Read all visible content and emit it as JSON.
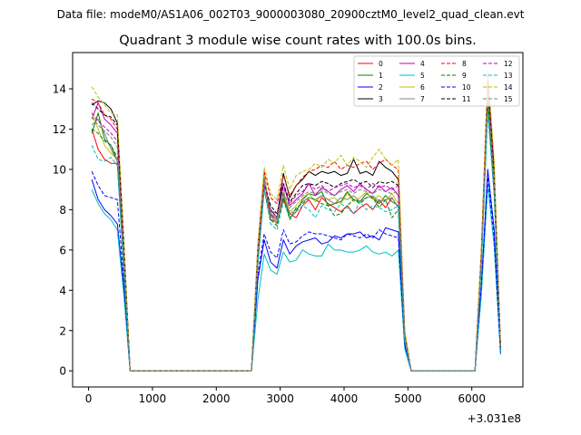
{
  "figure": {
    "suptitle": "Data file: modeM0/AS1A06_002T03_9000003080_20900cztM0_level2_quad_clean.evt"
  },
  "chart_data": {
    "type": "line",
    "title": "Quadrant 3 module wise count rates with 100.0s bins.",
    "xlabel": "",
    "ylabel": "",
    "x_offset_label": "+3.031e8",
    "xlim": [
      -250,
      6800
    ],
    "ylim": [
      -0.8,
      15.8
    ],
    "x_ticks": [
      0,
      1000,
      2000,
      3000,
      4000,
      5000,
      6000
    ],
    "x_tick_labels": [
      "0",
      "1000",
      "2000",
      "3000",
      "4000",
      "5000",
      "6000"
    ],
    "y_ticks": [
      0,
      2,
      4,
      6,
      8,
      10,
      12,
      14
    ],
    "y_tick_labels": [
      "0",
      "2",
      "4",
      "6",
      "8",
      "10",
      "12",
      "14"
    ],
    "legend_position": "top-right",
    "legend_columns": 4,
    "x": [
      50,
      150,
      250,
      350,
      450,
      550,
      650,
      750,
      850,
      950,
      1050,
      1150,
      1250,
      1350,
      1450,
      1550,
      1650,
      1750,
      1850,
      1950,
      2050,
      2150,
      2250,
      2350,
      2450,
      2550,
      2650,
      2750,
      2850,
      2950,
      3050,
      3150,
      3250,
      3350,
      3450,
      3550,
      3650,
      3750,
      3850,
      3950,
      4050,
      4150,
      4250,
      4350,
      4450,
      4550,
      4650,
      4750,
      4850,
      4950,
      5050,
      5150,
      5250,
      5350,
      5450,
      5550,
      5650,
      5750,
      5850,
      5950,
      6050,
      6150,
      6250,
      6350,
      6450
    ],
    "series": [
      {
        "name": "0",
        "color": "#ff0000",
        "dash": "solid",
        "values": [
          12.0,
          11.0,
          10.5,
          10.3,
          10.3,
          5.5,
          0,
          0,
          0,
          0,
          0,
          0,
          0,
          0,
          0,
          0,
          0,
          0,
          0,
          0,
          0,
          0,
          0,
          0,
          0,
          0,
          5.5,
          9.5,
          7.5,
          7.4,
          8.5,
          7.8,
          7.6,
          8.2,
          8.5,
          8.0,
          8.6,
          8.3,
          8.1,
          7.9,
          8.2,
          7.8,
          8.1,
          8.3,
          8.0,
          8.5,
          8.1,
          8.6,
          8.1,
          1.5,
          0,
          0,
          0,
          0,
          0,
          0,
          0,
          0,
          0,
          0,
          0,
          5.5,
          13.8,
          9.2,
          1.2
        ]
      },
      {
        "name": "1",
        "color": "#008000",
        "dash": "solid",
        "values": [
          11.8,
          12.8,
          11.5,
          11.2,
          10.4,
          5.0,
          0,
          0,
          0,
          0,
          0,
          0,
          0,
          0,
          0,
          0,
          0,
          0,
          0,
          0,
          0,
          0,
          0,
          0,
          0,
          0,
          5.8,
          9.5,
          7.8,
          7.3,
          8.8,
          7.6,
          7.9,
          8.5,
          8.8,
          8.7,
          8.9,
          8.2,
          8.3,
          8.4,
          8.9,
          8.5,
          8.4,
          8.8,
          8.6,
          8.3,
          8.7,
          8.4,
          8.2,
          1.7,
          0,
          0,
          0,
          0,
          0,
          0,
          0,
          0,
          0,
          0,
          0,
          5.4,
          13.2,
          8.8,
          1.2
        ]
      },
      {
        "name": "2",
        "color": "#0000ff",
        "dash": "solid",
        "values": [
          9.5,
          8.5,
          8.0,
          7.7,
          7.3,
          4.2,
          0,
          0,
          0,
          0,
          0,
          0,
          0,
          0,
          0,
          0,
          0,
          0,
          0,
          0,
          0,
          0,
          0,
          0,
          0,
          0,
          4.5,
          6.5,
          5.4,
          5.1,
          6.5,
          5.8,
          6.2,
          6.4,
          6.5,
          6.6,
          6.3,
          6.4,
          6.7,
          6.6,
          6.8,
          6.8,
          6.9,
          6.6,
          6.7,
          6.5,
          7.1,
          7.0,
          6.9,
          1.3,
          0,
          0,
          0,
          0,
          0,
          0,
          0,
          0,
          0,
          0,
          0,
          4.2,
          10.0,
          7.0,
          0.9
        ]
      },
      {
        "name": "3",
        "color": "#000000",
        "dash": "solid",
        "values": [
          13.2,
          13.4,
          13.3,
          13.0,
          12.3,
          6.5,
          0,
          0,
          0,
          0,
          0,
          0,
          0,
          0,
          0,
          0,
          0,
          0,
          0,
          0,
          0,
          0,
          0,
          0,
          0,
          0,
          6.0,
          9.5,
          8.0,
          7.6,
          9.8,
          8.6,
          9.2,
          9.5,
          9.9,
          9.7,
          9.9,
          9.8,
          9.9,
          9.7,
          9.8,
          10.5,
          9.8,
          9.9,
          9.7,
          10.4,
          10.1,
          9.9,
          9.5,
          1.9,
          0,
          0,
          0,
          0,
          0,
          0,
          0,
          0,
          0,
          0,
          0,
          6.0,
          14.6,
          10.0,
          1.2
        ]
      },
      {
        "name": "4",
        "color": "#bf00bf",
        "dash": "solid",
        "values": [
          12.5,
          13.3,
          12.5,
          12.2,
          11.8,
          5.8,
          0,
          0,
          0,
          0,
          0,
          0,
          0,
          0,
          0,
          0,
          0,
          0,
          0,
          0,
          0,
          0,
          0,
          0,
          0,
          0,
          5.6,
          9.6,
          7.8,
          7.5,
          9.3,
          8.2,
          8.5,
          8.8,
          9.3,
          8.7,
          9.1,
          8.9,
          8.7,
          9.0,
          9.2,
          8.9,
          9.3,
          9.0,
          8.8,
          9.2,
          8.9,
          9.1,
          8.7,
          1.8,
          0,
          0,
          0,
          0,
          0,
          0,
          0,
          0,
          0,
          0,
          0,
          5.5,
          13.9,
          9.5,
          1.2
        ]
      },
      {
        "name": "5",
        "color": "#00bfbf",
        "dash": "solid",
        "values": [
          9.0,
          8.3,
          7.8,
          7.5,
          7.0,
          3.8,
          0,
          0,
          0,
          0,
          0,
          0,
          0,
          0,
          0,
          0,
          0,
          0,
          0,
          0,
          0,
          0,
          0,
          0,
          0,
          0,
          3.5,
          5.8,
          5.0,
          4.8,
          5.9,
          5.4,
          5.5,
          6.0,
          5.8,
          5.7,
          5.7,
          6.3,
          6.0,
          6.0,
          5.9,
          5.9,
          6.0,
          6.2,
          5.9,
          5.8,
          5.9,
          5.7,
          6.0,
          1.1,
          0,
          0,
          0,
          0,
          0,
          0,
          0,
          0,
          0,
          0,
          0,
          3.8,
          9.2,
          6.2,
          0.8
        ]
      },
      {
        "name": "6",
        "color": "#bfbf00",
        "dash": "solid",
        "values": [
          12.8,
          12.0,
          11.2,
          10.8,
          10.5,
          5.3,
          0,
          0,
          0,
          0,
          0,
          0,
          0,
          0,
          0,
          0,
          0,
          0,
          0,
          0,
          0,
          0,
          0,
          0,
          0,
          0,
          5.7,
          9.8,
          7.7,
          7.4,
          8.9,
          7.9,
          8.2,
          8.6,
          8.8,
          8.4,
          8.7,
          8.5,
          8.6,
          8.3,
          8.8,
          8.4,
          8.6,
          8.9,
          8.5,
          8.7,
          8.4,
          8.8,
          8.3,
          1.6,
          0,
          0,
          0,
          0,
          0,
          0,
          0,
          0,
          0,
          0,
          0,
          5.6,
          14.1,
          9.3,
          1.2
        ]
      },
      {
        "name": "7",
        "color": "#808080",
        "dash": "solid",
        "values": [
          12.2,
          12.5,
          11.8,
          11.0,
          10.4,
          5.2,
          0,
          0,
          0,
          0,
          0,
          0,
          0,
          0,
          0,
          0,
          0,
          0,
          0,
          0,
          0,
          0,
          0,
          0,
          0,
          0,
          5.6,
          9.6,
          7.7,
          7.3,
          8.7,
          7.8,
          8.0,
          8.4,
          8.6,
          8.5,
          8.7,
          8.5,
          8.3,
          8.6,
          8.5,
          8.7,
          8.4,
          8.6,
          8.7,
          8.4,
          8.5,
          8.6,
          8.1,
          1.6,
          0,
          0,
          0,
          0,
          0,
          0,
          0,
          0,
          0,
          0,
          0,
          5.3,
          13.6,
          9.1,
          1.1
        ]
      },
      {
        "name": "8",
        "color": "#ff0000",
        "dash": "dashed",
        "values": [
          13.5,
          13.3,
          12.7,
          12.5,
          12.0,
          6.2,
          0,
          0,
          0,
          0,
          0,
          0,
          0,
          0,
          0,
          0,
          0,
          0,
          0,
          0,
          0,
          0,
          0,
          0,
          0,
          0,
          6.2,
          9.9,
          8.6,
          8.3,
          9.7,
          8.7,
          9.2,
          9.6,
          9.9,
          10.0,
          10.2,
          10.1,
          10.4,
          10.0,
          10.2,
          10.1,
          10.3,
          10.4,
          10.0,
          10.3,
          10.5,
          10.2,
          10.0,
          1.9,
          0,
          0,
          0,
          0,
          0,
          0,
          0,
          0,
          0,
          0,
          0,
          6.0,
          14.7,
          10.2,
          1.3
        ]
      },
      {
        "name": "9",
        "color": "#008000",
        "dash": "dashed",
        "values": [
          12.0,
          11.8,
          11.4,
          11.2,
          10.6,
          5.4,
          0,
          0,
          0,
          0,
          0,
          0,
          0,
          0,
          0,
          0,
          0,
          0,
          0,
          0,
          0,
          0,
          0,
          0,
          0,
          0,
          5.4,
          9.0,
          7.5,
          7.2,
          8.6,
          7.5,
          8.1,
          8.3,
          8.6,
          8.5,
          8.3,
          8.2,
          7.7,
          7.8,
          8.2,
          8.5,
          8.3,
          8.6,
          8.6,
          8.1,
          8.5,
          7.6,
          8.0,
          1.6,
          0,
          0,
          0,
          0,
          0,
          0,
          0,
          0,
          0,
          0,
          0,
          5.4,
          13.5,
          9.0,
          1.2
        ]
      },
      {
        "name": "10",
        "color": "#0000ff",
        "dash": "dashed",
        "values": [
          9.9,
          9.2,
          8.7,
          8.6,
          8.5,
          4.5,
          0,
          0,
          0,
          0,
          0,
          0,
          0,
          0,
          0,
          0,
          0,
          0,
          0,
          0,
          0,
          0,
          0,
          0,
          0,
          0,
          4.8,
          6.8,
          5.9,
          5.6,
          7.0,
          6.3,
          6.4,
          6.7,
          6.9,
          6.8,
          6.8,
          6.7,
          6.6,
          6.5,
          6.8,
          6.7,
          6.6,
          6.8,
          6.6,
          7.0,
          6.8,
          6.7,
          6.6,
          1.3,
          0,
          0,
          0,
          0,
          0,
          0,
          0,
          0,
          0,
          0,
          0,
          4.3,
          9.6,
          6.6,
          0.9
        ]
      },
      {
        "name": "11",
        "color": "#000000",
        "dash": "dashed",
        "values": [
          13.3,
          13.0,
          12.7,
          12.6,
          12.2,
          6.2,
          0,
          0,
          0,
          0,
          0,
          0,
          0,
          0,
          0,
          0,
          0,
          0,
          0,
          0,
          0,
          0,
          0,
          0,
          0,
          0,
          5.8,
          9.3,
          8.2,
          7.8,
          9.3,
          8.4,
          8.8,
          9.2,
          9.3,
          9.2,
          9.4,
          9.3,
          9.1,
          9.3,
          9.4,
          9.5,
          9.3,
          9.4,
          9.1,
          9.4,
          9.3,
          9.4,
          9.2,
          1.8,
          0,
          0,
          0,
          0,
          0,
          0,
          0,
          0,
          0,
          0,
          0,
          5.7,
          14.3,
          9.7,
          1.2
        ]
      },
      {
        "name": "12",
        "color": "#bf00bf",
        "dash": "dashed",
        "values": [
          12.8,
          12.4,
          12.1,
          11.8,
          11.4,
          5.8,
          0,
          0,
          0,
          0,
          0,
          0,
          0,
          0,
          0,
          0,
          0,
          0,
          0,
          0,
          0,
          0,
          0,
          0,
          0,
          0,
          5.9,
          9.2,
          8.0,
          7.8,
          9.1,
          8.3,
          8.7,
          8.9,
          9.3,
          9.0,
          9.2,
          8.9,
          9.1,
          9.2,
          9.3,
          9.1,
          9.2,
          9.0,
          9.3,
          9.1,
          9.2,
          9.0,
          9.2,
          1.8,
          0,
          0,
          0,
          0,
          0,
          0,
          0,
          0,
          0,
          0,
          0,
          5.6,
          14.0,
          9.6,
          1.2
        ]
      },
      {
        "name": "13",
        "color": "#00bfbf",
        "dash": "dashed",
        "values": [
          11.2,
          10.5,
          10.4,
          10.6,
          10.2,
          5.1,
          0,
          0,
          0,
          0,
          0,
          0,
          0,
          0,
          0,
          0,
          0,
          0,
          0,
          0,
          0,
          0,
          0,
          0,
          0,
          0,
          5.2,
          9.0,
          7.3,
          7.0,
          8.4,
          7.6,
          7.9,
          8.2,
          8.0,
          7.6,
          8.2,
          8.0,
          7.9,
          8.3,
          8.1,
          7.8,
          8.4,
          8.0,
          8.2,
          8.1,
          7.9,
          8.0,
          8.2,
          1.5,
          0,
          0,
          0,
          0,
          0,
          0,
          0,
          0,
          0,
          0,
          0,
          5.2,
          12.8,
          8.7,
          1.1
        ]
      },
      {
        "name": "14",
        "color": "#bfbf00",
        "dash": "dashed",
        "values": [
          14.1,
          13.6,
          13.2,
          12.8,
          12.7,
          6.6,
          0,
          0,
          0,
          0,
          0,
          0,
          0,
          0,
          0,
          0,
          0,
          0,
          0,
          0,
          0,
          0,
          0,
          0,
          0,
          0,
          6.3,
          10.1,
          8.8,
          8.5,
          10.2,
          9.0,
          9.7,
          9.9,
          10.0,
          10.3,
          10.1,
          10.5,
          10.3,
          10.7,
          10.2,
          10.6,
          10.4,
          10.1,
          10.6,
          11.0,
          10.5,
          10.2,
          10.5,
          2.0,
          0,
          0,
          0,
          0,
          0,
          0,
          0,
          0,
          0,
          0,
          0,
          6.2,
          14.9,
          10.5,
          1.3
        ]
      },
      {
        "name": "15",
        "color": "#808080",
        "dash": "dashed",
        "values": [
          12.6,
          12.2,
          11.9,
          11.6,
          11.1,
          5.6,
          0,
          0,
          0,
          0,
          0,
          0,
          0,
          0,
          0,
          0,
          0,
          0,
          0,
          0,
          0,
          0,
          0,
          0,
          0,
          0,
          5.7,
          9.4,
          7.9,
          7.6,
          8.9,
          8.1,
          8.4,
          8.7,
          8.9,
          8.8,
          9.0,
          8.8,
          8.7,
          8.9,
          9.0,
          8.8,
          9.0,
          8.9,
          8.8,
          9.0,
          8.9,
          8.8,
          8.9,
          1.7,
          0,
          0,
          0,
          0,
          0,
          0,
          0,
          0,
          0,
          0,
          0,
          5.5,
          13.7,
          9.3,
          1.2
        ]
      }
    ]
  }
}
